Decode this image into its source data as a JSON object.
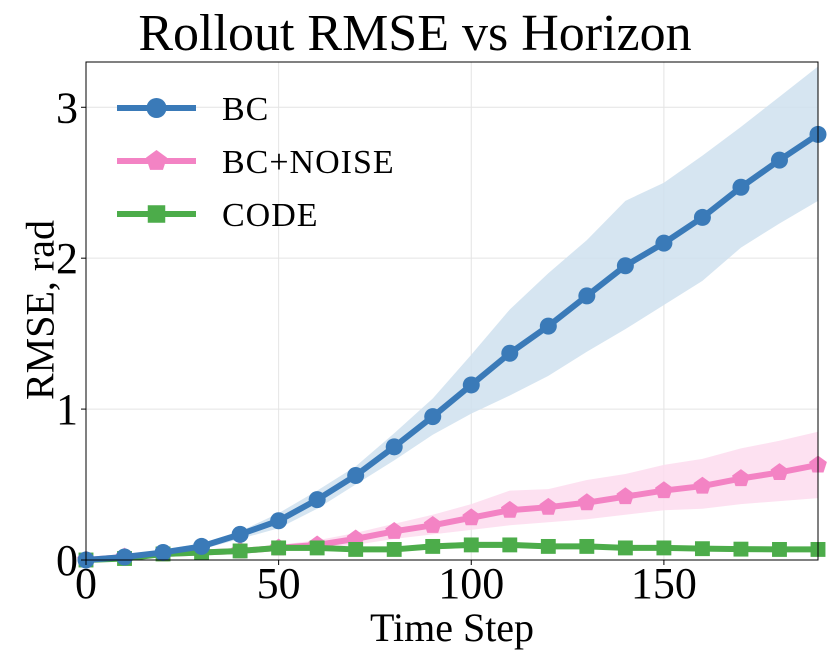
{
  "chart_data": {
    "type": "line",
    "title": "Rollout RMSE vs Horizon",
    "xlabel": "Time Step",
    "ylabel": "RMSE, rad",
    "xlim": [
      0,
      190
    ],
    "ylim": [
      0,
      3.3
    ],
    "xticks": [
      0,
      50,
      100,
      150
    ],
    "yticks": [
      0,
      1,
      2,
      3
    ],
    "grid": true,
    "legend_position": "top-left",
    "x": [
      0,
      10,
      20,
      30,
      40,
      50,
      60,
      70,
      80,
      90,
      100,
      110,
      120,
      130,
      140,
      150,
      160,
      170,
      180,
      190
    ],
    "series": [
      {
        "name": "BC",
        "color": "#3a7ab8",
        "band_color": "#cfe0ef",
        "marker": "circle",
        "values": [
          0.0,
          0.02,
          0.05,
          0.09,
          0.17,
          0.26,
          0.4,
          0.56,
          0.75,
          0.95,
          1.16,
          1.37,
          1.55,
          1.75,
          1.95,
          2.1,
          2.27,
          2.47,
          2.65,
          2.82
        ],
        "lower": [
          0.0,
          0.01,
          0.03,
          0.07,
          0.14,
          0.21,
          0.34,
          0.5,
          0.66,
          0.83,
          0.97,
          1.09,
          1.22,
          1.38,
          1.53,
          1.69,
          1.85,
          2.07,
          2.23,
          2.38
        ],
        "upper": [
          0.0,
          0.03,
          0.07,
          0.11,
          0.19,
          0.31,
          0.46,
          0.62,
          0.84,
          1.07,
          1.36,
          1.66,
          1.9,
          2.12,
          2.38,
          2.5,
          2.68,
          2.87,
          3.07,
          3.27
        ]
      },
      {
        "name": "BC+NOISE",
        "color": "#f383c4",
        "band_color": "#fddcee",
        "marker": "pentagon",
        "values": [
          0.0,
          0.02,
          0.04,
          0.05,
          0.06,
          0.08,
          0.1,
          0.14,
          0.19,
          0.23,
          0.28,
          0.33,
          0.35,
          0.38,
          0.42,
          0.46,
          0.49,
          0.54,
          0.58,
          0.63
        ],
        "lower": [
          0.0,
          0.01,
          0.03,
          0.04,
          0.05,
          0.06,
          0.08,
          0.1,
          0.14,
          0.17,
          0.2,
          0.23,
          0.25,
          0.27,
          0.3,
          0.33,
          0.34,
          0.37,
          0.39,
          0.41
        ],
        "upper": [
          0.0,
          0.03,
          0.05,
          0.06,
          0.07,
          0.1,
          0.13,
          0.18,
          0.24,
          0.3,
          0.37,
          0.46,
          0.47,
          0.53,
          0.57,
          0.63,
          0.67,
          0.74,
          0.79,
          0.85
        ]
      },
      {
        "name": "CODE",
        "color": "#4cac4a",
        "band_color": "#b5ddb3",
        "marker": "square",
        "values": [
          0.0,
          0.01,
          0.04,
          0.05,
          0.06,
          0.08,
          0.08,
          0.07,
          0.07,
          0.09,
          0.1,
          0.1,
          0.09,
          0.09,
          0.08,
          0.08,
          0.075,
          0.072,
          0.07,
          0.07
        ],
        "lower": [
          0.0,
          0.0,
          0.03,
          0.04,
          0.05,
          0.06,
          0.06,
          0.055,
          0.055,
          0.07,
          0.08,
          0.08,
          0.075,
          0.075,
          0.065,
          0.065,
          0.06,
          0.058,
          0.055,
          0.055
        ],
        "upper": [
          0.0,
          0.02,
          0.05,
          0.06,
          0.07,
          0.1,
          0.1,
          0.085,
          0.085,
          0.11,
          0.12,
          0.12,
          0.105,
          0.105,
          0.095,
          0.095,
          0.09,
          0.086,
          0.085,
          0.085
        ]
      }
    ]
  }
}
